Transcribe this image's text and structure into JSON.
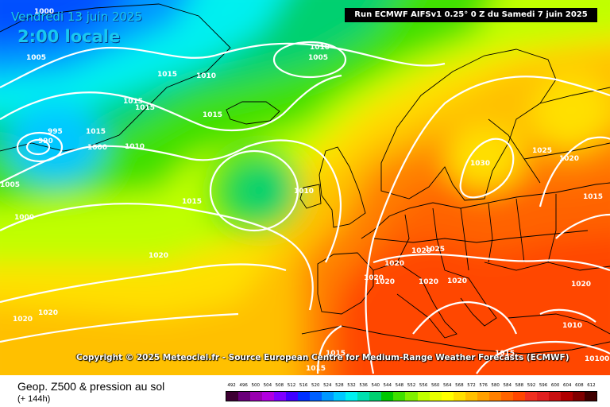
{
  "header": {
    "date": "Vendredi 13 juin 2025",
    "local_time": "2:00 locale",
    "run_info": "Run ECMWF AIFSv1 0.25° 0 Z du Samedi 7 juin 2025"
  },
  "copyright": "Copyright © 2025 Meteociel.fr - Source European Centre for Medium-Range Weather Forecasts (ECMWF)",
  "footer": {
    "title": "Geop. Z500 & pression au sol",
    "subtitle": "(+ 144h)"
  },
  "scale": {
    "labels": [
      "492",
      "496",
      "500",
      "504",
      "508",
      "512",
      "516",
      "520",
      "524",
      "528",
      "532",
      "536",
      "540",
      "544",
      "548",
      "552",
      "556",
      "560",
      "564",
      "568",
      "572",
      "576",
      "580",
      "584",
      "588",
      "592",
      "596",
      "600",
      "604",
      "608",
      "612"
    ],
    "colors": [
      "#3d0033",
      "#6a007a",
      "#9900b0",
      "#b100e0",
      "#7f00ff",
      "#4000ff",
      "#0030ff",
      "#0060ff",
      "#0098ff",
      "#00c8ff",
      "#00f0f0",
      "#00e0b0",
      "#00d070",
      "#00c800",
      "#40e000",
      "#80f000",
      "#c0ff00",
      "#e8ff00",
      "#ffff00",
      "#ffe000",
      "#ffc000",
      "#ffa000",
      "#ff8000",
      "#ff6400",
      "#ff4600",
      "#f03020",
      "#e02020",
      "#c81010",
      "#b00000",
      "#800000",
      "#400000"
    ]
  },
  "pressure_labels": [
    "1000",
    "1005",
    "1010",
    "1015",
    "1020",
    "1025",
    "1030",
    "995",
    "990",
    "10100",
    "1020",
    "1015",
    "1010",
    "1005",
    "1000"
  ]
}
